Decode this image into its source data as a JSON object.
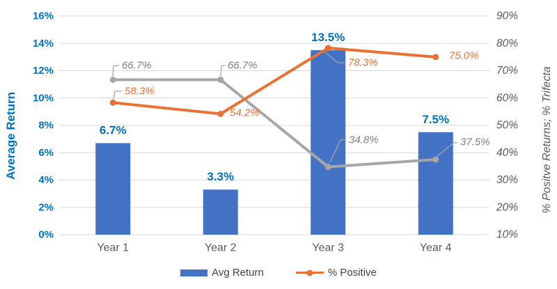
{
  "chart_data": {
    "type": "combo",
    "title": "",
    "categories": [
      "Year 1",
      "Year 2",
      "Year 3",
      "Year 4"
    ],
    "series": [
      {
        "name": "Avg Return",
        "chart": "bar",
        "axis": "left",
        "values": [
          6.7,
          3.3,
          13.5,
          7.5
        ],
        "point_labels": [
          "6.7%",
          "3.3%",
          "13.5%",
          "7.5%"
        ],
        "color": "#4472C4",
        "label_color": "#0070C0"
      },
      {
        "name": "% Positive",
        "chart": "line",
        "axis": "right",
        "values": [
          58.3,
          54.2,
          78.3,
          75.0
        ],
        "point_labels": [
          "58.3%",
          "54.2%",
          "78.3%",
          "75.0%"
        ],
        "color": "#E97132",
        "label_color": "#E97132"
      },
      {
        "name": "% Trifecta",
        "chart": "line",
        "axis": "right",
        "values": [
          66.7,
          66.7,
          34.8,
          37.5
        ],
        "point_labels": [
          "66.7%",
          "66.7%",
          "34.8%",
          "37.5%"
        ],
        "color": "#A6A6A6",
        "label_color": "#7F7F7F"
      }
    ],
    "left_axis": {
      "title": "Average Return",
      "min": 0,
      "max": 16,
      "step": 2,
      "tick_labels": [
        "0%",
        "2%",
        "4%",
        "6%",
        "8%",
        "10%",
        "12%",
        "14%",
        "16%"
      ],
      "color": "#0070C0"
    },
    "right_axis": {
      "title": "% Positve Returns; % Trifecta",
      "min": 10,
      "max": 90,
      "step": 10,
      "tick_labels": [
        "10%",
        "20%",
        "30%",
        "40%",
        "50%",
        "60%",
        "70%",
        "80%",
        "90%"
      ],
      "color": "#595959"
    },
    "x_axis": {
      "color": "#595959"
    },
    "legend": {
      "position": "bottom",
      "items": [
        {
          "label": "Avg Return",
          "marker": "bar",
          "color": "#4472C4"
        },
        {
          "label": "% Positive",
          "marker": "line-dot",
          "color": "#E97132"
        }
      ]
    },
    "grid": {
      "show": true,
      "color": "#D9D9D9"
    },
    "leader_line_color": "#A6A6A6",
    "background": "#FFFFFF"
  }
}
